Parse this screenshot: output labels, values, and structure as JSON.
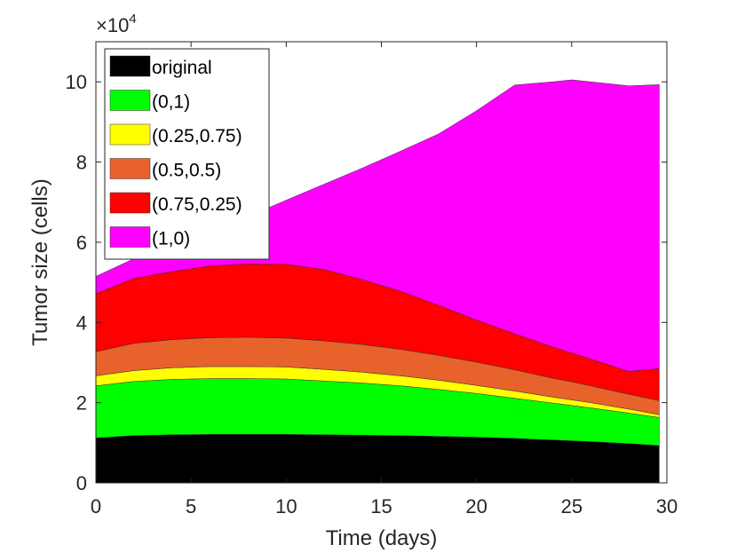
{
  "chart_data": {
    "type": "area",
    "stacked": true,
    "xlabel": "Time (days)",
    "ylabel": "Tumor size (cells)",
    "y_exponent_label": "×10",
    "y_exponent_power": "4",
    "xlim": [
      0,
      30
    ],
    "ylim": [
      0,
      11
    ],
    "y_scale_note": "values in units of 10^4 cells",
    "x_ticks": [
      "0",
      "5",
      "10",
      "15",
      "20",
      "25",
      "30"
    ],
    "y_ticks": [
      "0",
      "2",
      "4",
      "6",
      "8",
      "10"
    ],
    "x_tick_values": [
      0,
      5,
      10,
      15,
      20,
      25,
      30
    ],
    "y_tick_values": [
      0,
      2,
      4,
      6,
      8,
      10
    ],
    "grid": false,
    "legend_position": "top-left",
    "x": [
      0,
      2,
      4,
      6,
      8,
      10,
      12,
      14,
      16,
      18,
      20,
      22,
      24,
      25,
      26,
      28,
      29.6
    ],
    "series": [
      {
        "name": "original",
        "color": "#000000",
        "values": [
          1.12,
          1.18,
          1.2,
          1.21,
          1.21,
          1.21,
          1.2,
          1.19,
          1.18,
          1.16,
          1.14,
          1.11,
          1.07,
          1.05,
          1.03,
          0.98,
          0.93
        ]
      },
      {
        "name": "(0,1)",
        "color": "#00ff00",
        "values": [
          1.3,
          1.35,
          1.38,
          1.39,
          1.39,
          1.38,
          1.34,
          1.3,
          1.24,
          1.17,
          1.09,
          1.0,
          0.92,
          0.88,
          0.84,
          0.76,
          0.7
        ]
      },
      {
        "name": "(0.25,0.75)",
        "color": "#ffff00",
        "values": [
          0.25,
          0.27,
          0.29,
          0.3,
          0.3,
          0.3,
          0.29,
          0.27,
          0.25,
          0.23,
          0.2,
          0.18,
          0.15,
          0.14,
          0.13,
          0.1,
          0.07
        ]
      },
      {
        "name": "(0.5,0.5)",
        "color": "#e8622c",
        "values": [
          0.6,
          0.68,
          0.7,
          0.72,
          0.73,
          0.72,
          0.71,
          0.69,
          0.66,
          0.62,
          0.58,
          0.53,
          0.47,
          0.45,
          0.42,
          0.37,
          0.35
        ]
      },
      {
        "name": "(0.75,0.25)",
        "color": "#ff0000",
        "values": [
          1.45,
          1.62,
          1.7,
          1.79,
          1.83,
          1.84,
          1.78,
          1.62,
          1.45,
          1.25,
          1.05,
          0.9,
          0.78,
          0.72,
          0.67,
          0.57,
          0.8
        ]
      },
      {
        "name": "(1,0)",
        "color": "#ff00ff",
        "values": [
          0.43,
          0.49,
          0.63,
          0.75,
          1.18,
          1.6,
          2.13,
          2.78,
          3.49,
          4.27,
          5.22,
          6.2,
          6.61,
          6.81,
          6.91,
          7.12,
          7.08
        ]
      }
    ]
  }
}
